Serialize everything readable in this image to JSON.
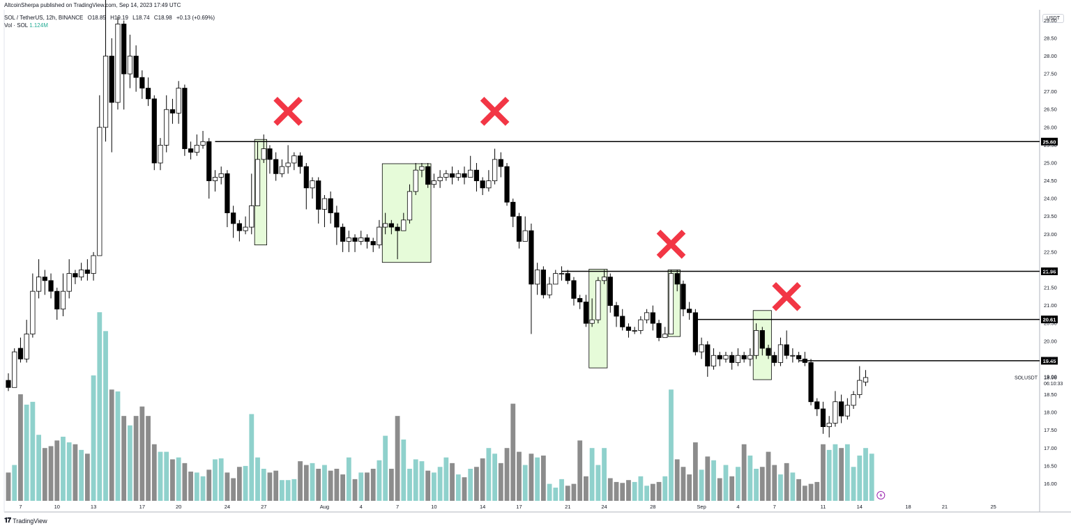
{
  "header": {
    "publisher": "AltcoinSherpa published on TradingView.com, Sep 14, 2023 17:49 UTC",
    "symbol_line": "SOL / TetherUS, 12h, BINANCE",
    "ohlc": {
      "o": "O18.85",
      "h": "H19.19",
      "l": "L18.74",
      "c": "C18.98",
      "chg": "+0.13 (+0.69%)"
    },
    "volume_label": "Vol · SOL",
    "volume_value": "1.124M",
    "currency_badge": "USDT"
  },
  "footer": {
    "brand": "TradingView"
  },
  "colors": {
    "up_volume": "#8fd1cc",
    "down_volume": "#8c8c8c",
    "green_zone": "#e6fbd9",
    "cross": "#f23645",
    "axis_text": "#131722"
  },
  "chart_data": {
    "type": "candlestick",
    "symbol": "SOLUSDT",
    "interval": "12h",
    "price_axis": {
      "min": 15.5,
      "max": 29.3,
      "ticks": [
        "29.00",
        "28.50",
        "28.00",
        "27.50",
        "27.00",
        "26.50",
        "26.00",
        "25.50",
        "25.00",
        "24.50",
        "24.00",
        "23.50",
        "23.00",
        "22.50",
        "22.00",
        "21.50",
        "21.00",
        "20.50",
        "20.00",
        "19.50",
        "19.00",
        "18.50",
        "18.00",
        "17.50",
        "17.00",
        "16.50",
        "16.00"
      ]
    },
    "time_axis": {
      "labels": [
        {
          "label": "7",
          "idx": 2
        },
        {
          "label": "10",
          "idx": 8
        },
        {
          "label": "13",
          "idx": 14
        },
        {
          "label": "17",
          "idx": 22
        },
        {
          "label": "20",
          "idx": 28
        },
        {
          "label": "24",
          "idx": 36
        },
        {
          "label": "27",
          "idx": 42
        },
        {
          "label": "Aug",
          "idx": 52
        },
        {
          "label": "4",
          "idx": 58
        },
        {
          "label": "7",
          "idx": 64
        },
        {
          "label": "10",
          "idx": 70
        },
        {
          "label": "14",
          "idx": 78
        },
        {
          "label": "17",
          "idx": 84
        },
        {
          "label": "21",
          "idx": 92
        },
        {
          "label": "24",
          "idx": 98
        },
        {
          "label": "28",
          "idx": 106
        },
        {
          "label": "Sep",
          "idx": 114
        },
        {
          "label": "4",
          "idx": 120
        },
        {
          "label": "7",
          "idx": 126
        },
        {
          "label": "11",
          "idx": 134
        },
        {
          "label": "14",
          "idx": 140
        },
        {
          "label": "18",
          "idx": 148
        },
        {
          "label": "21",
          "idx": 154
        },
        {
          "label": "25",
          "idx": 162
        }
      ]
    },
    "horizontal_levels": [
      {
        "price": 25.6,
        "label": "25.60",
        "from_idx": 34
      },
      {
        "price": 21.96,
        "label": "21.96",
        "from_idx": 91
      },
      {
        "price": 20.61,
        "label": "20.61",
        "from_idx": 113
      },
      {
        "price": 19.45,
        "label": "19.45",
        "from_idx": 130
      }
    ],
    "current": {
      "symbol_label": "SOLUSDT",
      "price_label": "18.98",
      "countdown": "06:10:33",
      "price": 18.98
    },
    "zones": [
      {
        "from_idx": 40.5,
        "to_idx": 42.5,
        "top": 25.66,
        "bottom": 22.7
      },
      {
        "from_idx": 61.5,
        "to_idx": 69.5,
        "top": 24.98,
        "bottom": 22.21
      },
      {
        "from_idx": 95.5,
        "to_idx": 98.5,
        "top": 22.02,
        "bottom": 19.25
      },
      {
        "from_idx": 108.5,
        "to_idx": 110.5,
        "top": 22.0,
        "bottom": 20.13
      },
      {
        "from_idx": 122.5,
        "to_idx": 125.5,
        "top": 20.86,
        "bottom": 18.92
      }
    ],
    "crosses": [
      {
        "idx": 46,
        "price": 26.45
      },
      {
        "idx": 80,
        "price": 26.45
      },
      {
        "idx": 109,
        "price": 22.72
      },
      {
        "idx": 128,
        "price": 21.25
      }
    ],
    "candles": [
      [
        18.9,
        18.7,
        19.1,
        18.6
      ],
      [
        18.7,
        19.7,
        19.8,
        18.7
      ],
      [
        19.8,
        19.5,
        20.1,
        19.4
      ],
      [
        19.5,
        20.2,
        20.6,
        19.4
      ],
      [
        20.2,
        21.4,
        21.9,
        20.1
      ],
      [
        21.4,
        21.8,
        22.3,
        21.2
      ],
      [
        21.8,
        21.7,
        22.0,
        21.3
      ],
      [
        21.7,
        21.4,
        21.9,
        21.2
      ],
      [
        21.4,
        20.9,
        21.5,
        20.6
      ],
      [
        20.9,
        21.4,
        21.9,
        20.7
      ],
      [
        21.4,
        21.9,
        22.3,
        21.2
      ],
      [
        21.9,
        21.8,
        22.0,
        21.6
      ],
      [
        21.8,
        22.0,
        22.2,
        21.7
      ],
      [
        22.0,
        21.9,
        22.3,
        21.7
      ],
      [
        21.9,
        22.4,
        22.5,
        21.7
      ],
      [
        22.4,
        26.0,
        26.9,
        22.4
      ],
      [
        26.0,
        28.0,
        29.8,
        25.6
      ],
      [
        28.0,
        26.7,
        28.5,
        25.3
      ],
      [
        26.7,
        28.9,
        29.1,
        26.5
      ],
      [
        28.9,
        27.5,
        29.0,
        26.5
      ],
      [
        27.5,
        28.0,
        28.6,
        27.1
      ],
      [
        28.0,
        27.4,
        28.3,
        27.0
      ],
      [
        27.4,
        27.1,
        27.6,
        26.8
      ],
      [
        27.1,
        26.8,
        27.4,
        26.6
      ],
      [
        26.8,
        25.0,
        26.9,
        24.8
      ],
      [
        25.0,
        25.5,
        25.7,
        24.8
      ],
      [
        25.5,
        26.5,
        26.9,
        25.3
      ],
      [
        26.5,
        26.4,
        26.8,
        26.1
      ],
      [
        26.4,
        27.1,
        27.3,
        26.1
      ],
      [
        27.1,
        25.4,
        27.2,
        25.2
      ],
      [
        25.4,
        25.3,
        25.6,
        25.1
      ],
      [
        25.3,
        25.5,
        25.8,
        25.2
      ],
      [
        25.5,
        25.6,
        25.9,
        25.4
      ],
      [
        25.6,
        24.5,
        25.7,
        24.0
      ],
      [
        24.5,
        24.6,
        24.8,
        24.2
      ],
      [
        24.6,
        24.7,
        24.9,
        24.4
      ],
      [
        24.7,
        23.6,
        24.8,
        23.2
      ],
      [
        23.6,
        23.3,
        23.8,
        22.9
      ],
      [
        23.3,
        23.1,
        23.4,
        22.8
      ],
      [
        23.1,
        23.2,
        23.5,
        23.0
      ],
      [
        23.2,
        23.8,
        24.7,
        23.0
      ],
      [
        23.8,
        25.1,
        25.6,
        23.8
      ],
      [
        25.1,
        25.4,
        25.8,
        25.0
      ],
      [
        25.4,
        25.1,
        25.5,
        24.7
      ],
      [
        25.1,
        24.7,
        25.3,
        24.5
      ],
      [
        24.7,
        24.9,
        25.1,
        24.6
      ],
      [
        24.9,
        25.0,
        25.5,
        24.7
      ],
      [
        25.0,
        25.2,
        25.3,
        24.8
      ],
      [
        25.2,
        24.9,
        25.3,
        24.7
      ],
      [
        24.9,
        24.3,
        25.0,
        23.7
      ],
      [
        24.3,
        24.5,
        24.6,
        24.0
      ],
      [
        24.5,
        23.7,
        24.6,
        23.3
      ],
      [
        23.7,
        24.0,
        24.1,
        23.2
      ],
      [
        24.0,
        23.6,
        24.2,
        23.3
      ],
      [
        23.6,
        23.2,
        23.8,
        22.7
      ],
      [
        23.2,
        22.8,
        23.3,
        22.5
      ],
      [
        22.8,
        22.9,
        23.1,
        22.5
      ],
      [
        22.9,
        22.8,
        23.0,
        22.5
      ],
      [
        22.8,
        22.9,
        23.1,
        22.7
      ],
      [
        22.9,
        22.8,
        23.0,
        22.6
      ],
      [
        22.8,
        22.7,
        22.9,
        22.5
      ],
      [
        22.7,
        23.2,
        23.4,
        22.6
      ],
      [
        23.2,
        23.3,
        23.6,
        23.0
      ],
      [
        23.3,
        23.2,
        23.4,
        23.0
      ],
      [
        23.2,
        23.1,
        23.3,
        22.3
      ],
      [
        23.1,
        23.4,
        23.6,
        23.1
      ],
      [
        23.4,
        24.2,
        24.4,
        23.3
      ],
      [
        24.2,
        24.8,
        25.0,
        24.1
      ],
      [
        24.8,
        24.9,
        25.0,
        24.6
      ],
      [
        24.9,
        24.4,
        25.0,
        24.3
      ],
      [
        24.4,
        24.5,
        24.7,
        24.3
      ],
      [
        24.5,
        24.6,
        24.8,
        24.3
      ],
      [
        24.6,
        24.7,
        24.8,
        24.5
      ],
      [
        24.7,
        24.6,
        24.9,
        24.4
      ],
      [
        24.6,
        24.7,
        24.8,
        24.5
      ],
      [
        24.7,
        24.6,
        24.9,
        24.4
      ],
      [
        24.6,
        24.8,
        25.2,
        24.6
      ],
      [
        24.8,
        24.5,
        25.0,
        24.2
      ],
      [
        24.5,
        24.3,
        24.6,
        24.1
      ],
      [
        24.3,
        24.5,
        24.8,
        24.2
      ],
      [
        24.5,
        25.1,
        25.4,
        24.4
      ],
      [
        25.1,
        24.9,
        25.3,
        24.6
      ],
      [
        24.9,
        23.9,
        25.0,
        23.8
      ],
      [
        23.9,
        23.5,
        24.0,
        23.2
      ],
      [
        23.5,
        22.8,
        23.6,
        22.6
      ],
      [
        22.8,
        23.1,
        23.5,
        22.9
      ],
      [
        23.1,
        21.6,
        23.3,
        20.2
      ],
      [
        21.6,
        22.0,
        22.2,
        21.3
      ],
      [
        22.0,
        21.3,
        22.1,
        21.2
      ],
      [
        21.3,
        21.6,
        21.8,
        21.2
      ],
      [
        21.6,
        21.9,
        22.0,
        21.7
      ],
      [
        21.9,
        21.9,
        22.1,
        21.7
      ],
      [
        21.9,
        21.7,
        22.0,
        21.6
      ],
      [
        21.7,
        21.2,
        21.8,
        21.0
      ],
      [
        21.2,
        21.1,
        21.3,
        20.9
      ],
      [
        21.1,
        20.5,
        21.3,
        20.4
      ],
      [
        20.5,
        20.6,
        21.2,
        20.4
      ],
      [
        20.6,
        21.7,
        21.8,
        20.5
      ],
      [
        21.7,
        21.8,
        22.0,
        21.6
      ],
      [
        21.8,
        21.0,
        21.9,
        20.8
      ],
      [
        21.0,
        20.7,
        21.1,
        20.4
      ],
      [
        20.7,
        20.4,
        20.9,
        20.3
      ],
      [
        20.4,
        20.3,
        20.5,
        20.1
      ],
      [
        20.3,
        20.3,
        20.4,
        20.2
      ],
      [
        20.3,
        20.6,
        20.7,
        20.2
      ],
      [
        20.6,
        20.8,
        20.9,
        20.5
      ],
      [
        20.8,
        20.5,
        21.0,
        20.3
      ],
      [
        20.5,
        20.1,
        20.6,
        20.0
      ],
      [
        20.1,
        20.2,
        20.4,
        20.1
      ],
      [
        20.2,
        21.9,
        22.0,
        20.2
      ],
      [
        21.9,
        21.6,
        22.0,
        21.4
      ],
      [
        21.6,
        20.9,
        21.7,
        20.7
      ],
      [
        20.9,
        20.8,
        21.1,
        20.6
      ],
      [
        20.8,
        19.7,
        20.9,
        19.6
      ],
      [
        19.7,
        19.9,
        20.1,
        19.5
      ],
      [
        19.9,
        19.3,
        20.0,
        19.0
      ],
      [
        19.3,
        19.6,
        19.8,
        19.2
      ],
      [
        19.6,
        19.5,
        19.7,
        19.3
      ],
      [
        19.5,
        19.6,
        19.7,
        19.4
      ],
      [
        19.6,
        19.4,
        19.7,
        19.2
      ],
      [
        19.4,
        19.6,
        19.8,
        19.3
      ],
      [
        19.6,
        19.5,
        19.7,
        19.4
      ],
      [
        19.5,
        19.6,
        19.8,
        19.3
      ],
      [
        19.6,
        20.3,
        20.5,
        19.5
      ],
      [
        20.3,
        19.8,
        20.4,
        19.6
      ],
      [
        19.8,
        19.6,
        19.9,
        19.5
      ],
      [
        19.6,
        19.4,
        19.7,
        19.3
      ],
      [
        19.4,
        19.9,
        20.1,
        19.3
      ],
      [
        19.9,
        19.6,
        20.3,
        19.5
      ],
      [
        19.6,
        19.6,
        19.8,
        19.4
      ],
      [
        19.6,
        19.5,
        19.7,
        19.4
      ],
      [
        19.5,
        19.4,
        19.7,
        19.3
      ],
      [
        19.4,
        18.3,
        19.5,
        18.2
      ],
      [
        18.3,
        18.1,
        18.4,
        17.9
      ],
      [
        18.1,
        17.6,
        18.3,
        17.4
      ],
      [
        17.6,
        17.7,
        17.9,
        17.3
      ],
      [
        17.7,
        18.3,
        18.6,
        17.6
      ],
      [
        18.3,
        17.9,
        18.5,
        17.7
      ],
      [
        17.9,
        18.2,
        18.4,
        17.8
      ],
      [
        18.2,
        18.5,
        18.6,
        18.1
      ],
      [
        18.5,
        18.9,
        19.3,
        18.4
      ],
      [
        18.85,
        18.98,
        19.19,
        18.74
      ]
    ],
    "volume": {
      "min": 0,
      "max": 1300,
      "values": [
        300,
        380,
        1130,
        1020,
        1050,
        700,
        560,
        580,
        640,
        680,
        620,
        600,
        540,
        500,
        1330,
        2000,
        1800,
        1180,
        1160,
        900,
        800,
        900,
        1000,
        900,
        600,
        520,
        520,
        440,
        460,
        400,
        310,
        300,
        260,
        330,
        440,
        450,
        300,
        240,
        360,
        370,
        920,
        460,
        340,
        300,
        320,
        220,
        220,
        230,
        420,
        380,
        400,
        340,
        380,
        320,
        340,
        280,
        460,
        230,
        300,
        300,
        340,
        430,
        690,
        340,
        900,
        650,
        340,
        440,
        420,
        320,
        300,
        360,
        460,
        400,
        280,
        250,
        340,
        360,
        450,
        560,
        500,
        400,
        560,
        1030,
        520,
        380,
        500,
        460,
        480,
        180,
        140,
        230,
        160,
        180,
        640,
        260,
        560,
        380,
        560,
        240,
        200,
        190,
        220,
        200,
        260,
        160,
        180,
        200,
        260,
        1180,
        440,
        360,
        280,
        620,
        330,
        470,
        430,
        240,
        380,
        260,
        360,
        600,
        480,
        340,
        360,
        520,
        380,
        280,
        400,
        300,
        230,
        160,
        180,
        200,
        600,
        540,
        600,
        560,
        600,
        360,
        480,
        560,
        500
      ]
    }
  }
}
